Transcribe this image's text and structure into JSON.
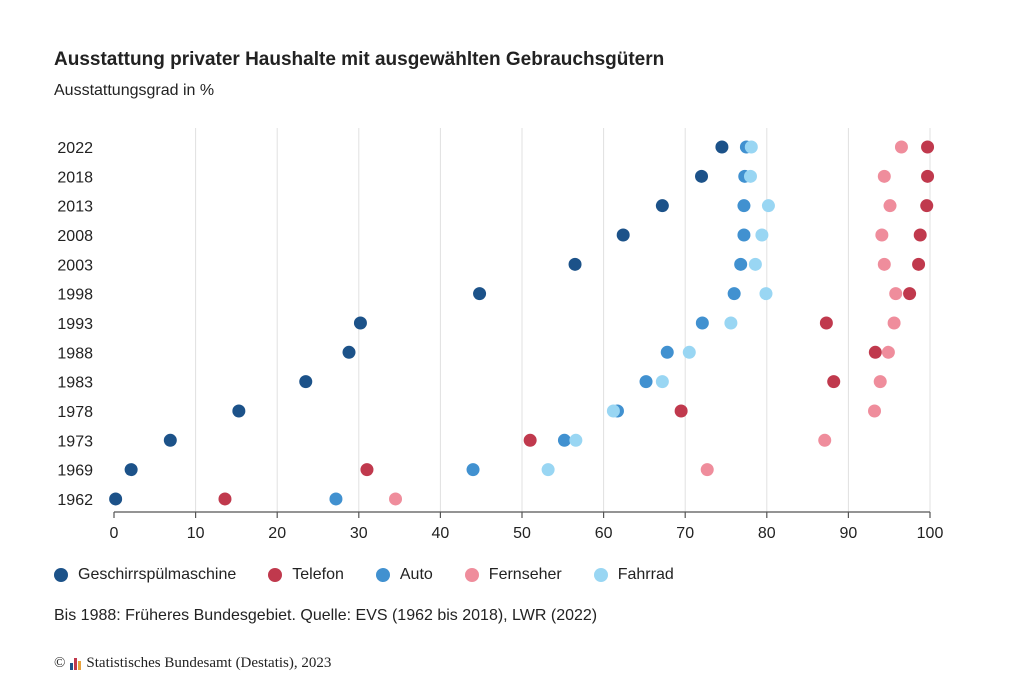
{
  "header": {
    "title": "Ausstattung privater Haushalte mit ausgewählten Gebrauchsgütern",
    "subtitle": "Ausstattungsgrad in %"
  },
  "footer": {
    "note": "Bis 1988: Früheres Bundesgebiet. Quelle: EVS (1962 bis 2018), LWR (2022)",
    "copyright_symbol": "©",
    "credit": "Statistisches Bundesamt (Destatis), 2023"
  },
  "chart_data": {
    "type": "scatter",
    "title": "Ausstattung privater Haushalte mit ausgewählten Gebrauchsgütern",
    "subtitle": "Ausstattungsgrad in %",
    "categories": [
      "2022",
      "2018",
      "2013",
      "2008",
      "2003",
      "1998",
      "1993",
      "1988",
      "1983",
      "1978",
      "1973",
      "1969",
      "1962"
    ],
    "xlim": [
      0,
      100
    ],
    "xticks": [
      0,
      10,
      20,
      30,
      40,
      50,
      60,
      70,
      80,
      90,
      100
    ],
    "grid": "vertical",
    "legend_position": "bottom-left",
    "series": [
      {
        "name": "Geschirrspülmaschine",
        "color": "#1c5289",
        "values": [
          74.5,
          72,
          67.2,
          62.4,
          56.5,
          44.8,
          30.2,
          28.8,
          23.5,
          15.3,
          6.9,
          2.1,
          0.2
        ]
      },
      {
        "name": "Telefon",
        "color": "#c0394d",
        "values": [
          99.7,
          99.7,
          99.6,
          98.8,
          98.6,
          97.5,
          87.3,
          93.3,
          88.2,
          69.5,
          51.0,
          31.0,
          13.6
        ]
      },
      {
        "name": "Auto",
        "color": "#4191d0",
        "values": [
          77.5,
          77.3,
          77.2,
          77.2,
          76.8,
          76.0,
          72.1,
          67.8,
          65.2,
          61.7,
          55.2,
          44.0,
          27.2
        ]
      },
      {
        "name": "Fernseher",
        "color": "#ef8d9c",
        "values": [
          96.5,
          94.4,
          95.1,
          94.1,
          94.4,
          95.8,
          95.6,
          94.9,
          93.9,
          93.2,
          87.1,
          72.7,
          34.5
        ]
      },
      {
        "name": "Fahrrad",
        "color": "#99d6f3",
        "values": [
          78.1,
          78.0,
          80.2,
          79.4,
          78.6,
          79.9,
          75.6,
          70.5,
          67.2,
          61.2,
          56.6,
          53.2,
          null
        ]
      }
    ]
  }
}
